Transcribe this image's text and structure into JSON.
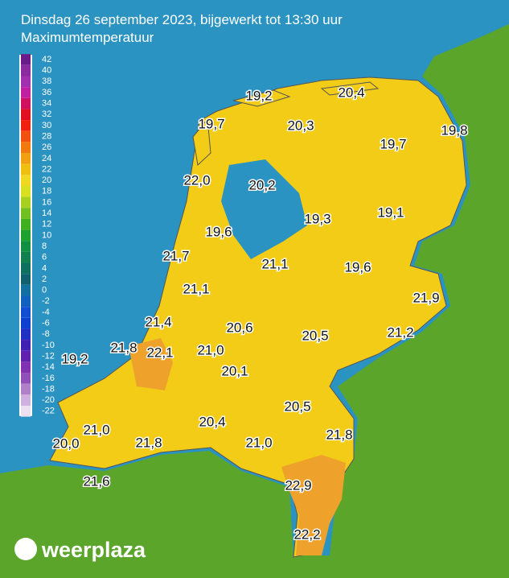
{
  "header": {
    "title": "Dinsdag 26 september 2023, bijgewerkt tot 13:30 uur",
    "subtitle": "Maximumtemperatuur"
  },
  "legend": {
    "labels": [
      42,
      40,
      38,
      36,
      34,
      32,
      30,
      28,
      26,
      24,
      22,
      20,
      18,
      16,
      14,
      12,
      10,
      8,
      6,
      4,
      2,
      0,
      -2,
      -4,
      -6,
      -8,
      -10,
      -12,
      -14,
      -16,
      -18,
      -20,
      -22
    ]
  },
  "stations": [
    "19,2",
    "20,4",
    "19,7",
    "20,3",
    "19,8",
    "19,7",
    "22,0",
    "20,2",
    "19,3",
    "19,1",
    "19,6",
    "21,7",
    "21,1",
    "19,6",
    "21,9",
    "21,1",
    "21,4",
    "20,6",
    "20,5",
    "21,2",
    "19,2",
    "21,8",
    "22,1",
    "21,0",
    "20,1",
    "20,5",
    "21,0",
    "20,4",
    "21,8",
    "21,0",
    "21,8",
    "20,0",
    "21,6",
    "22,9",
    "22,2"
  ],
  "logo": "weerplaza"
}
